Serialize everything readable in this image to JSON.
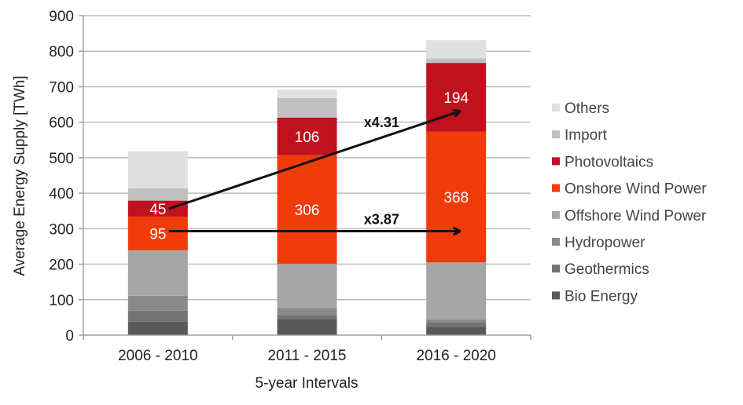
{
  "chart_data": {
    "type": "bar",
    "stacked": true,
    "title": "",
    "xlabel": "5-year Intervals",
    "ylabel": "Average Energy Supply [TWh]",
    "ylim": [
      0,
      900
    ],
    "yticks": [
      0,
      100,
      200,
      300,
      400,
      500,
      600,
      700,
      800,
      900
    ],
    "grid": true,
    "legend_position": "right",
    "categories": [
      "2006 - 2010",
      "2011 - 2015",
      "2016 - 2020"
    ],
    "series": [
      {
        "name": "Bio Energy",
        "color": "#595959",
        "values": [
          38,
          46,
          24
        ]
      },
      {
        "name": "Geothermics",
        "color": "#737373",
        "values": [
          31,
          11,
          13
        ]
      },
      {
        "name": "Hydropower",
        "color": "#8a8a8a",
        "values": [
          42,
          20,
          7
        ]
      },
      {
        "name": "Offshore Wind Power",
        "color": "#a6a6a6",
        "values": [
          128,
          124,
          161
        ]
      },
      {
        "name": "Onshore Wind Power",
        "color": "#f03c0a",
        "values": [
          95,
          306,
          368
        ],
        "labels": [
          "95",
          "306",
          "368"
        ]
      },
      {
        "name": "Photovoltaics",
        "color": "#c0111f",
        "values": [
          45,
          106,
          194
        ],
        "labels": [
          "45",
          "106",
          "194"
        ]
      },
      {
        "name": "Import",
        "color": "#c0c0c0",
        "values": [
          35,
          55,
          13
        ]
      },
      {
        "name": "Others",
        "color": "#e0e0e0",
        "values": [
          104,
          24,
          51
        ]
      }
    ],
    "legend_order": [
      "Others",
      "Import",
      "Photovoltaics",
      "Onshore Wind Power",
      "Offshore Wind Power",
      "Hydropower",
      "Geothermics",
      "Bio Energy"
    ],
    "annotations": [
      {
        "text": "x4.31",
        "from_category": 0,
        "to_category": 2,
        "series": "Photovoltaics",
        "from_value": 356,
        "to_value": 630
      },
      {
        "text": "x3.87",
        "from_category": 0,
        "to_category": 2,
        "series": "Onshore Wind Power",
        "from_value": 293,
        "to_value": 293
      }
    ]
  }
}
